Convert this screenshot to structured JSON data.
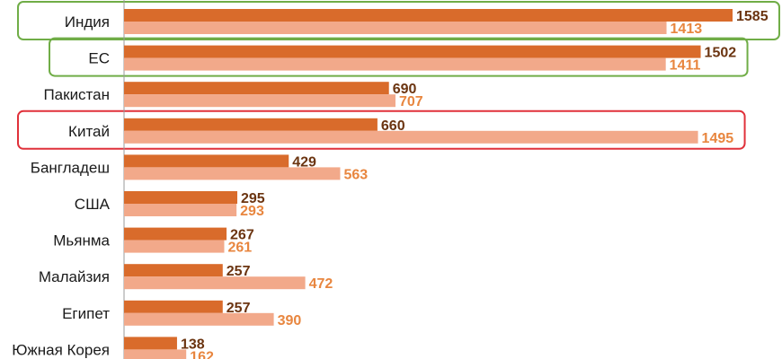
{
  "chart_data": {
    "type": "bar",
    "orientation": "horizontal",
    "categories": [
      "Индия",
      "ЕС",
      "Пакистан",
      "Китай",
      "Бангладеш",
      "США",
      "Мьянма",
      "Малайзия",
      "Египет",
      "Южная Корея"
    ],
    "series": [
      {
        "values": [
          1585,
          1502,
          690,
          660,
          429,
          295,
          267,
          257,
          257,
          138
        ],
        "color": "#d96b2b",
        "label_color": "#6b3410"
      },
      {
        "values": [
          1413,
          1411,
          707,
          1495,
          563,
          293,
          261,
          472,
          390,
          162
        ],
        "color": "#f2a98a",
        "label_color": "#e8863f"
      }
    ],
    "xlim": [
      0,
      1600
    ],
    "grid": false,
    "legend": "none",
    "highlights": [
      {
        "category": "Индия",
        "color": "#70ad47"
      },
      {
        "category": "ЕС",
        "color": "#70ad47"
      },
      {
        "category": "Китай",
        "color": "#e0313a"
      }
    ]
  }
}
